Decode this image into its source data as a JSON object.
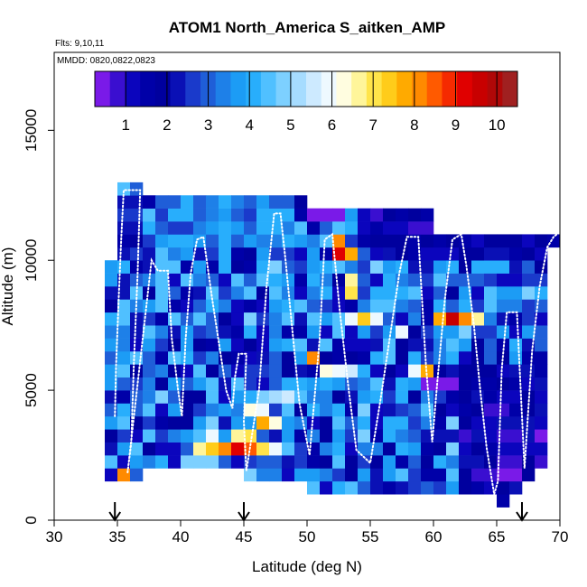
{
  "chart_data": {
    "type": "heatmap",
    "title": "ATOM1 North_America S_aitken_AMP",
    "flights_label": "Flts: 9,10,11",
    "dates_label": "MMDD: 0820,0822,0823",
    "xlabel": "Latitude (deg N)",
    "ylabel": "Altitude (m)",
    "xlim": [
      30,
      70
    ],
    "ylim": [
      0,
      18000
    ],
    "xticks": [
      30,
      35,
      40,
      45,
      50,
      55,
      60,
      65,
      70
    ],
    "yticks": [
      0,
      5000,
      10000,
      15000
    ],
    "colorbar": {
      "range": [
        0.25,
        10.5
      ],
      "ticks": [
        1,
        2,
        3,
        4,
        5,
        6,
        7,
        8,
        9,
        10
      ],
      "colors": [
        "#7a1ae8",
        "#3a0fd0",
        "#0b05bd",
        "#0000a8",
        "#00009e",
        "#0a10b5",
        "#1a3acb",
        "#1f5ed8",
        "#1e80e8",
        "#1c9cf5",
        "#28aefc",
        "#50c0ff",
        "#7dd0ff",
        "#a6dcff",
        "#cdeaff",
        "#eef9ff",
        "#fffde0",
        "#fff59a",
        "#ffe44a",
        "#ffcc1a",
        "#ffaa00",
        "#ff8a00",
        "#ff5a00",
        "#f52a00",
        "#e00000",
        "#c80000",
        "#b00808",
        "#a02020"
      ]
    },
    "arrows_latitude": [
      34.8,
      45,
      67
    ],
    "lat_bin_width": 1,
    "alt_bin_height": 500,
    "legend": "colorbar at top of plot",
    "flight_track": [
      [
        34.8,
        4000
      ],
      [
        34.9,
        6000
      ],
      [
        35.1,
        8500
      ],
      [
        35.3,
        10800
      ],
      [
        35.5,
        12700
      ],
      [
        36.8,
        12700
      ],
      [
        36.6,
        9500
      ],
      [
        36.3,
        6000
      ],
      [
        36.1,
        3000
      ],
      [
        35.8,
        1800
      ],
      [
        37.7,
        10000
      ],
      [
        38.2,
        9600
      ],
      [
        39.0,
        9600
      ],
      [
        39.3,
        7000
      ],
      [
        39.8,
        5000
      ],
      [
        40.1,
        4000
      ],
      [
        40.4,
        7000
      ],
      [
        40.8,
        9500
      ],
      [
        41.3,
        10800
      ],
      [
        41.8,
        10900
      ],
      [
        42.5,
        8500
      ],
      [
        43.6,
        5000
      ],
      [
        44.1,
        4300
      ],
      [
        44.3,
        5500
      ],
      [
        44.6,
        6400
      ],
      [
        45.2,
        6400
      ],
      [
        45.0,
        3800
      ],
      [
        45.2,
        1900
      ],
      [
        46.2,
        5000
      ],
      [
        46.8,
        9000
      ],
      [
        47.4,
        11800
      ],
      [
        47.9,
        11800
      ],
      [
        48.3,
        10000
      ],
      [
        48.9,
        7000
      ],
      [
        49.4,
        4500
      ],
      [
        50.2,
        2500
      ],
      [
        51.0,
        7000
      ],
      [
        51.4,
        10800
      ],
      [
        52.0,
        11000
      ],
      [
        52.6,
        8000
      ],
      [
        53.3,
        5000
      ],
      [
        53.9,
        2700
      ],
      [
        55.0,
        2200
      ],
      [
        55.8,
        4600
      ],
      [
        56.6,
        7200
      ],
      [
        57.3,
        9500
      ],
      [
        57.9,
        10900
      ],
      [
        58.8,
        10900
      ],
      [
        59.4,
        6000
      ],
      [
        59.9,
        3000
      ],
      [
        60.3,
        5300
      ],
      [
        60.9,
        8500
      ],
      [
        61.5,
        10800
      ],
      [
        62.2,
        11000
      ],
      [
        62.6,
        9800
      ],
      [
        63.2,
        7500
      ],
      [
        63.7,
        5000
      ],
      [
        64.2,
        2800
      ],
      [
        64.8,
        1000
      ],
      [
        65.1,
        1500
      ],
      [
        65.4,
        5800
      ],
      [
        65.8,
        8000
      ],
      [
        66.6,
        8000
      ],
      [
        66.9,
        5000
      ],
      [
        67.2,
        2000
      ],
      [
        67.4,
        3500
      ],
      [
        67.8,
        6500
      ],
      [
        68.4,
        9000
      ],
      [
        69.0,
        10500
      ],
      [
        69.5,
        10900
      ],
      [
        70.0,
        11100
      ]
    ]
  }
}
